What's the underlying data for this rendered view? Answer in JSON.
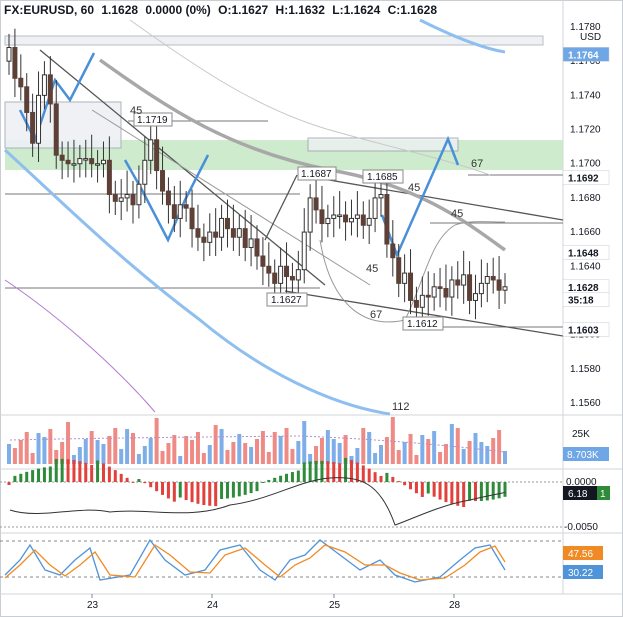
{
  "header": {
    "symbol": "FX:EURUSD, 60",
    "last": "1.1628",
    "change": "0.0000 (0%)",
    "open": "O:1.1627",
    "high": "H:1.1632",
    "low": "L:1.1624",
    "close": "C:1.1628"
  },
  "price_axis": {
    "unit": "USD",
    "ticks": [
      "1.1780",
      "1.1760",
      "1.1740",
      "1.1720",
      "1.1700",
      "1.1680",
      "1.1660",
      "1.1640",
      "1.1620",
      "1.1600",
      "1.1580",
      "1.1560"
    ],
    "badges": [
      {
        "label": "1.1764",
        "value": 1.1764,
        "bg": "#6ea6e6",
        "fg": "#ffffff"
      },
      {
        "label": "1.1692",
        "value": 1.1692,
        "bg": "#ffffff",
        "fg": "#131722"
      },
      {
        "label": "1.1648",
        "value": 1.1648,
        "bg": "#ffffff",
        "fg": "#131722"
      },
      {
        "label": "1.1628",
        "value": 1.1628,
        "bg": "#ffffff",
        "fg": "#131722"
      },
      {
        "label": "35:18",
        "value": 1.16205,
        "bg": "#ffffff",
        "fg": "#131722"
      },
      {
        "label": "1.1603",
        "value": 1.1603,
        "bg": "#ffffff",
        "fg": "#131722"
      }
    ]
  },
  "time_axis": [
    "23",
    "24",
    "25",
    "28"
  ],
  "annotations": {
    "levels": [
      "1.1719",
      "1.1687",
      "1.1685",
      "1.1627",
      "1.1612"
    ],
    "ma_labels": [
      "45",
      "67",
      "45",
      "45",
      "45",
      "67",
      "112"
    ]
  },
  "volume_axis": {
    "tick": "25K",
    "badge": "8.703K"
  },
  "macd_axis": {
    "ticks": [
      "0.0000",
      "-0.0050"
    ],
    "badge": "6.18",
    "badge2": "1"
  },
  "stoch_axis": {
    "badge1": "47.56",
    "badge2": "30.22"
  },
  "colors": {
    "up": "#26a69a",
    "down": "#5d4037",
    "ma_fast": "#6ea6e6",
    "ma_slow": "#9e9e9e",
    "channel": "#555555",
    "zone": "#b5e0b5",
    "vol_up": "#7eaee8",
    "vol_down": "#ef8a84",
    "macd_up": "#2e8b3a",
    "macd_down": "#e2413b",
    "stoch_k": "#4f93d9",
    "stoch_d": "#f08a24"
  },
  "chart_data": {
    "type": "candlestick",
    "title": "FX:EURUSD, 60",
    "ylim": [
      1.155,
      1.1785
    ],
    "x_labels": [
      "23",
      "24",
      "25",
      "28"
    ],
    "closes": [
      1.1768,
      1.175,
      1.1745,
      1.173,
      1.1712,
      1.174,
      1.1752,
      1.1735,
      1.1705,
      1.1702,
      1.17,
      1.17,
      1.1703,
      1.1703,
      1.17,
      1.17,
      1.1702,
      1.1682,
      1.1678,
      1.168,
      1.1682,
      1.1676,
      1.1688,
      1.1702,
      1.1714,
      1.1696,
      1.1684,
      1.1676,
      1.1668,
      1.1676,
      1.1674,
      1.1662,
      1.1657,
      1.1654,
      1.166,
      1.1657,
      1.1668,
      1.1662,
      1.1657,
      1.1662,
      1.1651,
      1.1656,
      1.1646,
      1.164,
      1.1636,
      1.163,
      1.164,
      1.1634,
      1.1632,
      1.1638,
      1.166,
      1.168,
      1.1673,
      1.1665,
      1.1668,
      1.167,
      1.167,
      1.1666,
      1.1668,
      1.167,
      1.1664,
      1.1668,
      1.168,
      1.1682,
      1.1653,
      1.1645,
      1.163,
      1.1636,
      1.162,
      1.1616,
      1.1623,
      1.1622,
      1.1628,
      1.1627,
      1.1622,
      1.1632,
      1.1629,
      1.1635,
      1.162,
      1.1624,
      1.163,
      1.1634,
      1.1632,
      1.1626,
      1.1628
    ],
    "volume_label": "8.703K",
    "macd_last": "6.18",
    "stoch": {
      "k": 47.56,
      "d": 30.22
    }
  }
}
